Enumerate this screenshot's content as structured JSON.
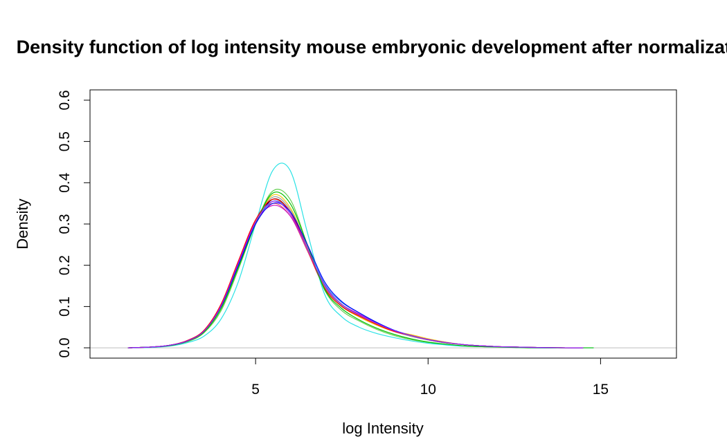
{
  "chart_data": {
    "type": "line",
    "title": "Density function of log intensity mouse embryonic development after normalization",
    "xlabel": "log Intensity",
    "ylabel": "Density",
    "xlim": [
      0.2,
      17.2
    ],
    "ylim": [
      -0.025,
      0.625
    ],
    "x_ticks": [
      5,
      10,
      15
    ],
    "x_tick_labels": [
      "5",
      "10",
      "15"
    ],
    "y_ticks": [
      0.0,
      0.1,
      0.2,
      0.3,
      0.4,
      0.5,
      0.6
    ],
    "y_tick_labels": [
      "0.0",
      "0.1",
      "0.2",
      "0.3",
      "0.4",
      "0.5",
      "0.6"
    ],
    "baseline": {
      "y": 0,
      "color": "#bebebe"
    },
    "grid": false,
    "legend": "none",
    "series": [
      {
        "color": "#000000",
        "x": [
          1.3,
          2.0,
          2.5,
          3.0,
          3.5,
          4.0,
          4.5,
          5.0,
          5.5,
          6.0,
          6.5,
          7.0,
          7.5,
          8.0,
          8.5,
          9.0,
          9.5,
          10.0,
          10.5,
          11.0,
          11.5,
          12.0,
          12.5,
          13.0,
          14.0,
          14.5
        ],
        "y": [
          0.0,
          0.002,
          0.006,
          0.016,
          0.04,
          0.1,
          0.2,
          0.3,
          0.36,
          0.33,
          0.24,
          0.15,
          0.105,
          0.08,
          0.06,
          0.042,
          0.03,
          0.02,
          0.013,
          0.008,
          0.005,
          0.003,
          0.002,
          0.001,
          0.0,
          0.0
        ]
      },
      {
        "color": "#df536b",
        "x": [
          1.3,
          2.0,
          2.5,
          3.0,
          3.5,
          4.0,
          4.5,
          5.0,
          5.5,
          6.0,
          6.5,
          7.0,
          7.5,
          8.0,
          8.5,
          9.0,
          9.5,
          10.0,
          10.5,
          11.0,
          11.5,
          12.0,
          12.5,
          13.0,
          14.0,
          14.5
        ],
        "y": [
          0.0,
          0.002,
          0.006,
          0.017,
          0.042,
          0.105,
          0.21,
          0.31,
          0.35,
          0.32,
          0.235,
          0.145,
          0.1,
          0.078,
          0.058,
          0.04,
          0.028,
          0.019,
          0.012,
          0.008,
          0.005,
          0.003,
          0.002,
          0.001,
          0.0,
          0.0
        ]
      },
      {
        "color": "#61d04f",
        "x": [
          1.3,
          2.0,
          2.5,
          3.0,
          3.5,
          4.0,
          4.5,
          5.0,
          5.5,
          6.0,
          6.5,
          7.0,
          7.5,
          8.0,
          8.5,
          9.0,
          9.5,
          10.0,
          10.5,
          11.0,
          11.5,
          12.0,
          12.5,
          13.0,
          14.0,
          14.5
        ],
        "y": [
          0.0,
          0.002,
          0.005,
          0.014,
          0.036,
          0.09,
          0.19,
          0.3,
          0.38,
          0.36,
          0.25,
          0.14,
          0.09,
          0.065,
          0.045,
          0.03,
          0.02,
          0.013,
          0.008,
          0.005,
          0.003,
          0.002,
          0.001,
          0.0,
          0.0,
          0.0
        ]
      },
      {
        "color": "#2297e6",
        "x": [
          1.3,
          2.0,
          2.5,
          3.0,
          3.5,
          4.0,
          4.5,
          5.0,
          5.5,
          6.0,
          6.5,
          7.0,
          7.5,
          8.0,
          8.5,
          9.0,
          9.5,
          10.0,
          10.5,
          11.0,
          11.5,
          12.0,
          12.5,
          13.0,
          14.0,
          14.5
        ],
        "y": [
          0.0,
          0.002,
          0.006,
          0.016,
          0.04,
          0.1,
          0.2,
          0.3,
          0.355,
          0.33,
          0.245,
          0.155,
          0.11,
          0.085,
          0.062,
          0.043,
          0.03,
          0.02,
          0.013,
          0.008,
          0.005,
          0.003,
          0.002,
          0.001,
          0.0,
          0.0
        ]
      },
      {
        "color": "#28e2e5",
        "x": [
          1.3,
          2.0,
          2.5,
          3.0,
          3.5,
          4.0,
          4.5,
          5.0,
          5.5,
          6.0,
          6.5,
          7.0,
          7.5,
          8.0,
          8.5,
          9.0,
          9.5,
          10.0,
          10.5,
          11.0,
          11.5,
          12.0,
          12.5,
          13.0,
          14.0,
          14.8
        ],
        "y": [
          0.0,
          0.001,
          0.004,
          0.012,
          0.028,
          0.07,
          0.16,
          0.3,
          0.43,
          0.43,
          0.28,
          0.13,
          0.075,
          0.05,
          0.035,
          0.025,
          0.017,
          0.011,
          0.007,
          0.004,
          0.003,
          0.002,
          0.001,
          0.0,
          0.0,
          0.0
        ]
      },
      {
        "color": "#cd0bbc",
        "x": [
          1.3,
          2.0,
          2.5,
          3.0,
          3.5,
          4.0,
          4.5,
          5.0,
          5.5,
          6.0,
          6.5,
          7.0,
          7.5,
          8.0,
          8.5,
          9.0,
          9.5,
          10.0,
          10.5,
          11.0,
          11.5,
          12.0,
          12.5,
          13.0,
          14.0,
          14.5
        ],
        "y": [
          0.0,
          0.002,
          0.006,
          0.016,
          0.041,
          0.103,
          0.205,
          0.305,
          0.345,
          0.32,
          0.24,
          0.15,
          0.105,
          0.082,
          0.06,
          0.042,
          0.03,
          0.02,
          0.013,
          0.008,
          0.005,
          0.003,
          0.002,
          0.001,
          0.0,
          0.0
        ]
      },
      {
        "color": "#f5c710",
        "x": [
          1.3,
          2.0,
          2.5,
          3.0,
          3.5,
          4.0,
          4.5,
          5.0,
          5.5,
          6.0,
          6.5,
          7.0,
          7.5,
          8.0,
          8.5,
          9.0,
          9.5,
          10.0,
          10.5,
          11.0,
          11.5,
          12.0,
          12.5,
          13.0,
          14.0,
          14.5
        ],
        "y": [
          0.0,
          0.002,
          0.006,
          0.016,
          0.04,
          0.1,
          0.2,
          0.3,
          0.37,
          0.34,
          0.245,
          0.145,
          0.1,
          0.075,
          0.055,
          0.04,
          0.032,
          0.022,
          0.014,
          0.008,
          0.005,
          0.003,
          0.002,
          0.001,
          0.0,
          0.0
        ]
      },
      {
        "color": "#9e9e9e",
        "x": [
          1.3,
          2.0,
          2.5,
          3.0,
          3.5,
          4.0,
          4.5,
          5.0,
          5.5,
          6.0,
          6.5,
          7.0,
          7.5,
          8.0,
          8.5,
          9.0,
          9.5,
          10.0,
          10.5,
          11.0,
          11.5,
          12.0,
          12.5,
          13.0,
          14.0,
          14.5
        ],
        "y": [
          0.0,
          0.002,
          0.006,
          0.016,
          0.04,
          0.1,
          0.2,
          0.3,
          0.365,
          0.335,
          0.245,
          0.148,
          0.102,
          0.078,
          0.058,
          0.04,
          0.028,
          0.019,
          0.012,
          0.008,
          0.005,
          0.003,
          0.002,
          0.001,
          0.0,
          0.0
        ]
      },
      {
        "color": "#ff0000",
        "x": [
          1.3,
          2.0,
          2.5,
          3.0,
          3.5,
          4.0,
          4.5,
          5.0,
          5.5,
          6.0,
          6.5,
          7.0,
          7.5,
          8.0,
          8.5,
          9.0,
          9.5,
          10.0,
          10.5,
          11.0,
          11.5,
          12.0,
          12.5,
          13.0,
          14.0,
          14.5
        ],
        "y": [
          0.0,
          0.002,
          0.006,
          0.017,
          0.042,
          0.106,
          0.21,
          0.31,
          0.36,
          0.33,
          0.24,
          0.145,
          0.1,
          0.077,
          0.057,
          0.04,
          0.03,
          0.02,
          0.013,
          0.008,
          0.005,
          0.003,
          0.002,
          0.001,
          0.0,
          0.0
        ]
      },
      {
        "color": "#00c000",
        "x": [
          1.3,
          2.0,
          2.5,
          3.0,
          3.5,
          4.0,
          4.5,
          5.0,
          5.5,
          6.0,
          6.5,
          7.0,
          7.5,
          8.0,
          8.5,
          9.0,
          9.5,
          10.0,
          10.5,
          11.0,
          11.5,
          12.0,
          12.5,
          13.0,
          14.0,
          14.8
        ],
        "y": [
          0.0,
          0.002,
          0.005,
          0.015,
          0.038,
          0.095,
          0.195,
          0.3,
          0.375,
          0.35,
          0.25,
          0.142,
          0.095,
          0.068,
          0.048,
          0.033,
          0.022,
          0.014,
          0.009,
          0.005,
          0.003,
          0.002,
          0.001,
          0.0,
          0.0,
          0.0
        ]
      },
      {
        "color": "#0000ff",
        "x": [
          1.3,
          2.0,
          2.5,
          3.0,
          3.5,
          4.0,
          4.5,
          5.0,
          5.5,
          6.0,
          6.5,
          7.0,
          7.5,
          8.0,
          8.5,
          9.0,
          9.5,
          10.0,
          10.5,
          11.0,
          11.5,
          12.0,
          12.5,
          13.0,
          14.0,
          14.5
        ],
        "y": [
          0.0,
          0.002,
          0.006,
          0.016,
          0.04,
          0.1,
          0.2,
          0.3,
          0.35,
          0.33,
          0.25,
          0.16,
          0.112,
          0.085,
          0.062,
          0.043,
          0.03,
          0.02,
          0.013,
          0.008,
          0.005,
          0.003,
          0.002,
          0.001,
          0.0,
          0.0
        ]
      },
      {
        "color": "#a020f0",
        "x": [
          1.3,
          2.0,
          2.5,
          3.0,
          3.5,
          4.0,
          4.5,
          5.0,
          5.5,
          6.0,
          6.5,
          7.0,
          7.5,
          8.0,
          8.5,
          9.0,
          9.5,
          10.0,
          10.5,
          11.0,
          11.5,
          12.0,
          12.5,
          13.0,
          14.0,
          14.5
        ],
        "y": [
          0.0,
          0.002,
          0.006,
          0.016,
          0.04,
          0.102,
          0.205,
          0.305,
          0.355,
          0.325,
          0.24,
          0.152,
          0.105,
          0.08,
          0.06,
          0.042,
          0.03,
          0.02,
          0.013,
          0.008,
          0.005,
          0.003,
          0.002,
          0.001,
          0.0,
          0.0
        ]
      }
    ]
  }
}
